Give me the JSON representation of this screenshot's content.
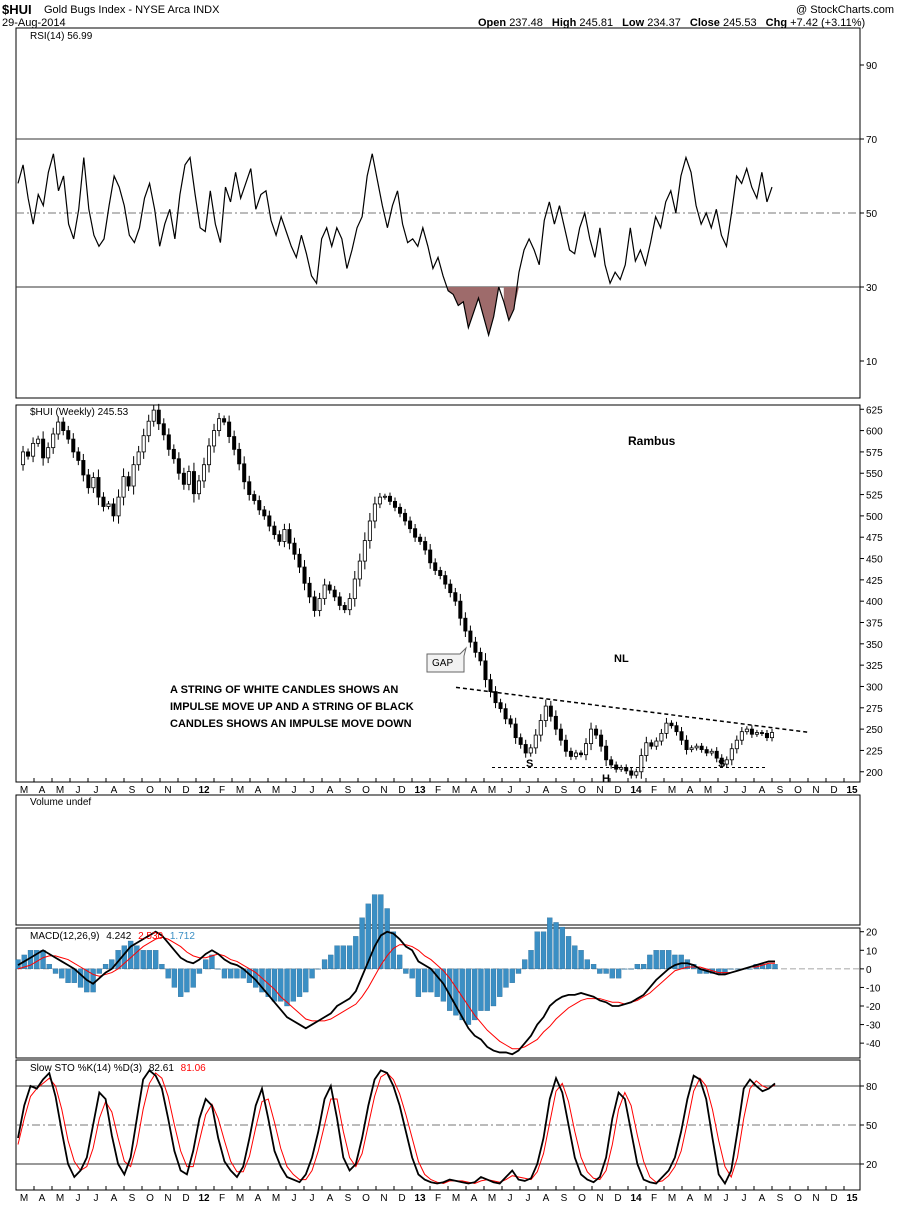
{
  "header": {
    "symbol": "$HUI",
    "name": "Gold Bugs Index - NYSE Arca INDX",
    "date": "29-Aug-2014",
    "watermark": "@ StockCharts.com",
    "open_label": "Open",
    "open": "237.48",
    "high_label": "High",
    "high": "245.81",
    "low_label": "Low",
    "low": "234.37",
    "close_label": "Close",
    "close": "245.53",
    "chg_label": "Chg",
    "chg": "+7.42 (+3.11%)"
  },
  "chart_data": [
    {
      "type": "line",
      "panel": "rsi",
      "title": "RSI(14) 56.99",
      "ylim": [
        0,
        100
      ],
      "yticks": [
        10,
        30,
        50,
        70,
        90
      ],
      "reference_lines": [
        30,
        50,
        70
      ],
      "series": [
        {
          "name": "RSI(14)",
          "values": [
            58,
            63,
            54,
            47,
            55,
            52,
            61,
            66,
            56,
            60,
            47,
            43,
            51,
            65,
            51,
            44,
            41,
            43,
            52,
            60,
            57,
            52,
            44,
            42,
            46,
            54,
            58,
            51,
            41,
            47,
            51,
            43,
            55,
            63,
            65,
            55,
            46,
            45,
            56,
            47,
            42,
            57,
            53,
            61,
            54,
            58,
            62,
            51,
            55,
            56,
            48,
            44,
            49,
            45,
            41,
            38,
            44,
            39,
            33,
            31,
            43,
            46,
            41,
            46,
            43,
            35,
            40,
            46,
            49,
            60,
            66,
            59,
            52,
            46,
            52,
            56,
            47,
            42,
            43,
            41,
            46,
            41,
            35,
            38,
            33,
            29,
            28,
            25,
            26,
            19,
            23,
            27,
            22,
            17,
            22,
            30,
            26,
            21,
            24,
            34,
            40,
            43,
            40,
            36,
            48,
            53,
            47,
            52,
            46,
            40,
            39,
            46,
            50,
            43,
            38,
            46,
            36,
            31,
            34,
            32,
            36,
            46,
            37,
            40,
            36,
            42,
            49,
            46,
            53,
            56,
            50,
            60,
            65,
            61,
            52,
            47,
            50,
            46,
            51,
            44,
            41,
            50,
            60,
            58,
            62,
            57,
            54,
            61,
            53,
            57
          ],
          "color": "#000000"
        }
      ],
      "fill_below": 30,
      "fill_color": "#9e6b6b"
    },
    {
      "type": "candlestick",
      "panel": "price",
      "title": "$HUI (Weekly) 245.53",
      "ylim": [
        188,
        630
      ],
      "yticks": [
        200,
        225,
        250,
        275,
        300,
        325,
        350,
        375,
        400,
        425,
        450,
        475,
        500,
        525,
        550,
        575,
        600,
        625
      ],
      "closes": [
        560,
        575,
        570,
        585,
        590,
        568,
        580,
        596,
        610,
        600,
        590,
        575,
        565,
        548,
        533,
        545,
        522,
        511,
        514,
        500,
        522,
        546,
        535,
        560,
        575,
        594,
        611,
        624,
        608,
        595,
        578,
        567,
        550,
        537,
        552,
        526,
        541,
        560,
        582,
        600,
        614,
        610,
        593,
        578,
        561,
        540,
        525,
        518,
        507,
        500,
        488,
        478,
        470,
        484,
        468,
        455,
        440,
        421,
        405,
        389,
        403,
        419,
        413,
        405,
        395,
        390,
        403,
        426,
        447,
        471,
        494,
        514,
        522,
        523,
        517,
        510,
        503,
        494,
        485,
        475,
        470,
        460,
        445,
        436,
        430,
        420,
        410,
        400,
        380,
        365,
        352,
        340,
        330,
        308,
        294,
        281,
        274,
        262,
        256,
        240,
        232,
        222,
        228,
        243,
        260,
        277,
        265,
        250,
        237,
        224,
        218,
        222,
        220,
        233,
        250,
        243,
        230,
        214,
        208,
        203,
        205,
        201,
        196,
        200,
        219,
        234,
        230,
        236,
        245,
        257,
        254,
        247,
        237,
        226,
        228,
        230,
        226,
        222,
        224,
        216,
        209,
        214,
        227,
        237,
        247,
        250,
        244,
        246,
        245,
        240,
        246
      ],
      "trendline_neckline": {
        "label": "NL",
        "from": [
          0.0,
          299
        ],
        "to": [
          1.0,
          246
        ]
      },
      "support_line": 205,
      "annotations": {
        "gap": "GAP",
        "neckline": "NL",
        "left_shoulder": "S",
        "head": "H",
        "right_shoulder": "S",
        "author": "Rambus",
        "note_lines": [
          "A STRING OF WHITE CANDLES SHOWS AN",
          "IMPULSE MOVE UP AND A STRING OF BLACK",
          "CANDLES SHOWS AN IMPULSE MOVE DOWN"
        ]
      }
    },
    {
      "type": "bar",
      "panel": "volume",
      "title": "Volume undef"
    },
    {
      "type": "line",
      "panel": "macd",
      "title_prefix": "MACD(12,26,9)",
      "values_shown": [
        "4.242",
        "2.530",
        "1.712"
      ],
      "ylim": [
        -48,
        22
      ],
      "yticks": [
        20,
        10,
        0,
        -10,
        -20,
        -30,
        -40
      ],
      "series": [
        {
          "name": "MACD",
          "color": "#000000",
          "values": [
            2,
            4,
            6,
            8,
            10,
            8,
            6,
            4,
            2,
            0,
            -3,
            -6,
            -8,
            -5,
            -2,
            0,
            4,
            8,
            12,
            14,
            16,
            18,
            20,
            18,
            14,
            10,
            6,
            4,
            3,
            5,
            8,
            10,
            8,
            5,
            3,
            2,
            0,
            -3,
            -6,
            -10,
            -14,
            -18,
            -22,
            -26,
            -28,
            -30,
            -32,
            -30,
            -28,
            -26,
            -24,
            -20,
            -18,
            -16,
            -12,
            -4,
            4,
            12,
            18,
            20,
            19,
            16,
            12,
            10,
            4,
            2,
            0,
            -4,
            -8,
            -14,
            -20,
            -26,
            -32,
            -36,
            -38,
            -42,
            -44,
            -45,
            -45,
            -46,
            -44,
            -40,
            -36,
            -30,
            -26,
            -20,
            -17,
            -15,
            -14,
            -14,
            -13,
            -14,
            -15,
            -17,
            -18,
            -20,
            -20,
            -19,
            -18,
            -16,
            -14,
            -10,
            -6,
            -3,
            0,
            2,
            3,
            3,
            2,
            0,
            -1,
            -2,
            -3,
            -3,
            -2,
            -1,
            0,
            1,
            2,
            3,
            4,
            4
          ]
        },
        {
          "name": "Signal",
          "color": "#ff0000",
          "values": [
            0,
            1,
            2,
            4,
            6,
            7,
            7,
            6,
            5,
            3,
            1,
            -1,
            -3,
            -4,
            -3,
            -2,
            0,
            3,
            6,
            9,
            12,
            14,
            16,
            17,
            16,
            14,
            12,
            9,
            7,
            6,
            6,
            7,
            8,
            7,
            5,
            4,
            2,
            0,
            -2,
            -5,
            -8,
            -11,
            -15,
            -18,
            -21,
            -24,
            -27,
            -28,
            -28,
            -28,
            -27,
            -25,
            -23,
            -21,
            -19,
            -15,
            -10,
            -4,
            2,
            7,
            11,
            13,
            13,
            12,
            10,
            7,
            5,
            2,
            -1,
            -5,
            -10,
            -15,
            -20,
            -25,
            -29,
            -33,
            -36,
            -39,
            -41,
            -43,
            -43,
            -42,
            -40,
            -38,
            -34,
            -31,
            -27,
            -24,
            -21,
            -19,
            -17,
            -16,
            -16,
            -16,
            -17,
            -18,
            -18,
            -19,
            -18,
            -17,
            -15,
            -13,
            -10,
            -7,
            -4,
            -1,
            0,
            1,
            1,
            1,
            0,
            -1,
            -2,
            -2,
            -2,
            -1,
            0,
            1,
            1,
            2,
            3,
            3
          ]
        },
        {
          "name": "Histogram",
          "color": "#3b8fc4"
        }
      ]
    },
    {
      "type": "line",
      "panel": "sto",
      "title_prefix": "Slow STO %K(14) %D(3)",
      "values_shown": [
        "82.61",
        "81.06"
      ],
      "ylim": [
        0,
        100
      ],
      "yticks": [
        20,
        50,
        80
      ],
      "reference_lines": [
        20,
        50,
        80
      ],
      "series": [
        {
          "name": "%K",
          "color": "#000000",
          "values": [
            40,
            65,
            80,
            78,
            85,
            90,
            72,
            45,
            20,
            10,
            15,
            25,
            50,
            75,
            70,
            42,
            20,
            12,
            25,
            55,
            85,
            92,
            88,
            78,
            55,
            30,
            15,
            12,
            30,
            55,
            70,
            65,
            40,
            22,
            15,
            10,
            18,
            40,
            65,
            78,
            55,
            30,
            18,
            10,
            8,
            6,
            12,
            25,
            45,
            70,
            80,
            55,
            25,
            15,
            20,
            40,
            65,
            85,
            92,
            90,
            80,
            65,
            45,
            25,
            12,
            8,
            6,
            5,
            6,
            8,
            7,
            6,
            5,
            6,
            10,
            8,
            6,
            5,
            10,
            15,
            8,
            7,
            9,
            20,
            40,
            70,
            86,
            75,
            50,
            25,
            12,
            8,
            6,
            10,
            25,
            55,
            75,
            70,
            45,
            20,
            8,
            6,
            5,
            10,
            15,
            25,
            45,
            70,
            88,
            85,
            70,
            40,
            12,
            5,
            15,
            45,
            78,
            85,
            80,
            76,
            78,
            82
          ]
        },
        {
          "name": "%D",
          "color": "#ff0000",
          "values": [
            35,
            55,
            72,
            78,
            82,
            86,
            80,
            62,
            38,
            22,
            15,
            18,
            32,
            55,
            68,
            60,
            40,
            22,
            18,
            35,
            62,
            82,
            90,
            86,
            72,
            50,
            30,
            18,
            18,
            38,
            58,
            66,
            55,
            38,
            22,
            14,
            14,
            26,
            48,
            68,
            70,
            52,
            32,
            18,
            12,
            8,
            8,
            15,
            30,
            50,
            70,
            70,
            45,
            25,
            18,
            28,
            50,
            72,
            87,
            90,
            85,
            74,
            58,
            40,
            22,
            12,
            8,
            6,
            5,
            7,
            7,
            7,
            6,
            5,
            7,
            8,
            7,
            6,
            8,
            11,
            10,
            9,
            8,
            14,
            28,
            52,
            76,
            82,
            68,
            45,
            25,
            14,
            9,
            8,
            15,
            35,
            62,
            75,
            65,
            42,
            22,
            10,
            6,
            7,
            11,
            18,
            30,
            52,
            76,
            86,
            80,
            62,
            38,
            18,
            10,
            25,
            55,
            78,
            84,
            80,
            78,
            81
          ]
        }
      ]
    }
  ],
  "x_axis": {
    "labels": [
      "M",
      "A",
      "M",
      "J",
      "J",
      "A",
      "S",
      "O",
      "N",
      "D",
      "12",
      "F",
      "M",
      "A",
      "M",
      "J",
      "J",
      "A",
      "S",
      "O",
      "N",
      "D",
      "13",
      "F",
      "M",
      "A",
      "M",
      "J",
      "J",
      "A",
      "S",
      "O",
      "N",
      "D",
      "14",
      "F",
      "M",
      "A",
      "M",
      "J",
      "J",
      "A",
      "S",
      "O",
      "N",
      "D",
      "15"
    ]
  },
  "colors": {
    "grid": "#c8c8c8",
    "axis": "#000000",
    "rsi_fill": "#9e6b6b",
    "macd_hist": "#3b8fc4",
    "signal": "#ff0000"
  }
}
